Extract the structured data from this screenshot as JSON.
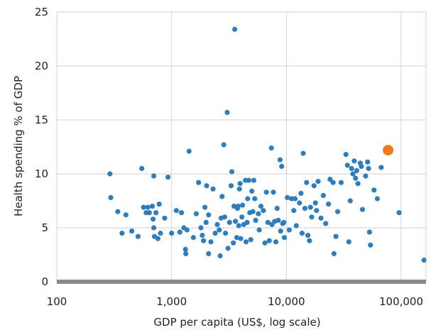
{
  "chart_data": {
    "type": "scatter",
    "title": "",
    "xlabel": "GDP per capita (US$, log scale)",
    "ylabel": "Health spending % of GDP",
    "x_scale": "log",
    "xlim": [
      100,
      170000
    ],
    "ylim": [
      0,
      25
    ],
    "grid": true,
    "legend": "none",
    "x_ticks": [
      {
        "value": 100,
        "label": "100"
      },
      {
        "value": 1000,
        "label": "1,000"
      },
      {
        "value": 10000,
        "label": "10,000"
      },
      {
        "value": 100000,
        "label": "100,000"
      }
    ],
    "y_ticks": [
      {
        "value": 0,
        "label": "0"
      },
      {
        "value": 5,
        "label": "5"
      },
      {
        "value": 10,
        "label": "10"
      },
      {
        "value": 15,
        "label": "15"
      },
      {
        "value": 20,
        "label": "20"
      },
      {
        "value": 25,
        "label": "25"
      }
    ],
    "colors": {
      "points": "#2e7ebd",
      "highlight": "#ef7a22",
      "grid": "#cfcfcf",
      "axis": "#8a8a8a"
    },
    "series": [
      {
        "color": "#2e7ebd",
        "points": [
          [
            290,
            10.0
          ],
          [
            295,
            7.8
          ],
          [
            340,
            6.5
          ],
          [
            370,
            4.5
          ],
          [
            400,
            6.2
          ],
          [
            450,
            4.7
          ],
          [
            510,
            4.2
          ],
          [
            550,
            10.5
          ],
          [
            570,
            6.9
          ],
          [
            600,
            6.4
          ],
          [
            620,
            6.9
          ],
          [
            640,
            6.4
          ],
          [
            680,
            7.0
          ],
          [
            700,
            9.8
          ],
          [
            690,
            5.8
          ],
          [
            700,
            5.0
          ],
          [
            710,
            4.2
          ],
          [
            730,
            6.4
          ],
          [
            760,
            4.0
          ],
          [
            780,
            7.2
          ],
          [
            800,
            4.5
          ],
          [
            870,
            5.9
          ],
          [
            930,
            9.7
          ],
          [
            1000,
            4.5
          ],
          [
            1100,
            6.6
          ],
          [
            1180,
            4.6
          ],
          [
            1220,
            6.4
          ],
          [
            1280,
            5.0
          ],
          [
            1320,
            3.0
          ],
          [
            1330,
            2.6
          ],
          [
            1360,
            4.8
          ],
          [
            1420,
            12.1
          ],
          [
            1550,
            4.1
          ],
          [
            1640,
            6.3
          ],
          [
            1720,
            9.2
          ],
          [
            1800,
            5.0
          ],
          [
            1850,
            4.3
          ],
          [
            1900,
            3.8
          ],
          [
            1950,
            6.9
          ],
          [
            2000,
            5.5
          ],
          [
            2020,
            8.9
          ],
          [
            2100,
            6.2
          ],
          [
            2200,
            3.7
          ],
          [
            2300,
            8.6
          ],
          [
            2100,
            2.6
          ],
          [
            2400,
            4.5
          ],
          [
            2500,
            5.3
          ],
          [
            2600,
            4.8
          ],
          [
            2700,
            5.9
          ],
          [
            2650,
            2.4
          ],
          [
            2750,
            7.9
          ],
          [
            2850,
            12.7
          ],
          [
            2900,
            6.0
          ],
          [
            2950,
            4.5
          ],
          [
            3050,
            15.7
          ],
          [
            3100,
            3.1
          ],
          [
            3200,
            5.5
          ],
          [
            3300,
            8.9
          ],
          [
            3350,
            10.2
          ],
          [
            3450,
            3.6
          ],
          [
            3500,
            7.0
          ],
          [
            3550,
            23.4
          ],
          [
            3600,
            5.6
          ],
          [
            3700,
            4.1
          ],
          [
            3750,
            6.8
          ],
          [
            3800,
            7.0
          ],
          [
            3850,
            5.2
          ],
          [
            3900,
            8.6
          ],
          [
            3950,
            9.1
          ],
          [
            4000,
            4.0
          ],
          [
            4100,
            6.0
          ],
          [
            4150,
            7.1
          ],
          [
            4250,
            5.3
          ],
          [
            4400,
            9.4
          ],
          [
            4450,
            3.7
          ],
          [
            4550,
            5.5
          ],
          [
            4600,
            7.7
          ],
          [
            4700,
            9.4
          ],
          [
            4800,
            6.4
          ],
          [
            4900,
            3.9
          ],
          [
            5000,
            8.4
          ],
          [
            5100,
            6.5
          ],
          [
            5200,
            9.4
          ],
          [
            5300,
            7.7
          ],
          [
            5400,
            5.7
          ],
          [
            5700,
            6.3
          ],
          [
            5800,
            4.8
          ],
          [
            6000,
            7.0
          ],
          [
            6300,
            6.6
          ],
          [
            6500,
            3.6
          ],
          [
            6700,
            8.3
          ],
          [
            6900,
            5.5
          ],
          [
            7100,
            3.8
          ],
          [
            7400,
            12.4
          ],
          [
            7500,
            5.3
          ],
          [
            7700,
            8.3
          ],
          [
            7900,
            5.6
          ],
          [
            8100,
            3.7
          ],
          [
            8300,
            6.8
          ],
          [
            8500,
            5.7
          ],
          [
            8800,
            11.3
          ],
          [
            8900,
            4.7
          ],
          [
            9100,
            10.7
          ],
          [
            9300,
            5.4
          ],
          [
            9500,
            5.5
          ],
          [
            9600,
            4.1
          ],
          [
            10200,
            7.8
          ],
          [
            10600,
            4.8
          ],
          [
            11100,
            7.7
          ],
          [
            11600,
            6.6
          ],
          [
            11900,
            7.7
          ],
          [
            12200,
            5.2
          ],
          [
            13000,
            7.3
          ],
          [
            13400,
            8.2
          ],
          [
            13700,
            4.5
          ],
          [
            14000,
            11.9
          ],
          [
            14500,
            6.8
          ],
          [
            15000,
            9.2
          ],
          [
            15400,
            4.3
          ],
          [
            15900,
            3.8
          ],
          [
            16200,
            6.9
          ],
          [
            16600,
            6.0
          ],
          [
            17400,
            8.9
          ],
          [
            17900,
            7.3
          ],
          [
            18300,
            6.6
          ],
          [
            18900,
            9.3
          ],
          [
            20000,
            5.9
          ],
          [
            21000,
            8.0
          ],
          [
            22000,
            5.4
          ],
          [
            23300,
            7.2
          ],
          [
            24000,
            9.5
          ],
          [
            25500,
            9.2
          ],
          [
            26000,
            2.6
          ],
          [
            27000,
            4.2
          ],
          [
            28000,
            6.5
          ],
          [
            30000,
            9.2
          ],
          [
            33000,
            11.8
          ],
          [
            34000,
            10.8
          ],
          [
            35000,
            3.7
          ],
          [
            36000,
            7.5
          ],
          [
            37000,
            10.5
          ],
          [
            38000,
            10.0
          ],
          [
            39000,
            11.2
          ],
          [
            40000,
            9.6
          ],
          [
            41000,
            10.3
          ],
          [
            42000,
            9.1
          ],
          [
            44000,
            11.0
          ],
          [
            45000,
            10.7
          ],
          [
            46000,
            6.7
          ],
          [
            49000,
            9.8
          ],
          [
            51000,
            11.1
          ],
          [
            52000,
            10.5
          ],
          [
            53000,
            4.6
          ],
          [
            54000,
            3.4
          ],
          [
            58000,
            8.5
          ],
          [
            62000,
            7.7
          ],
          [
            67000,
            10.6
          ],
          [
            96000,
            6.4
          ],
          [
            158000,
            2.0
          ]
        ]
      }
    ],
    "highlight": {
      "x": 77000,
      "y": 12.2,
      "color": "#ef7a22"
    }
  }
}
